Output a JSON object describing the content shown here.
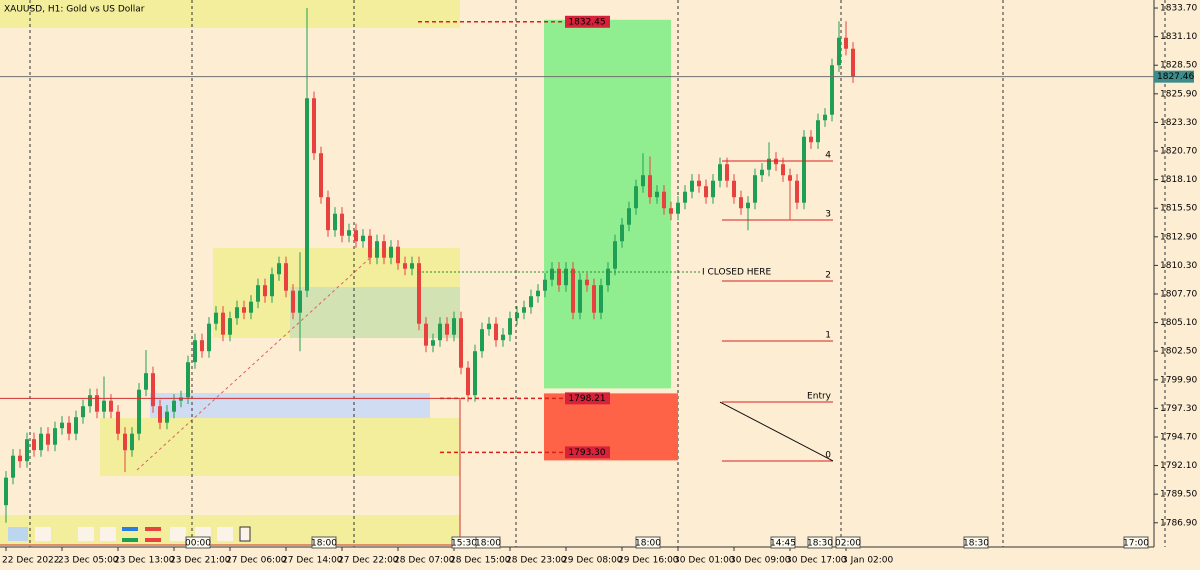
{
  "chart_data": {
    "type": "candlestick",
    "title": "XAUUSD, H1:  Gold vs US Dollar",
    "categories": [
      "22 Dec 2022",
      null,
      null,
      null,
      null,
      null,
      null,
      null,
      "23 Dec 05:00",
      null,
      null,
      null,
      null,
      null,
      null,
      null,
      "23 Dec 13:00",
      null,
      null,
      null,
      null,
      null,
      null,
      null,
      "23 Dec 21:00",
      null,
      null,
      null,
      null,
      null,
      null,
      null,
      "27 Dec 06:00",
      null,
      null,
      null,
      null,
      null,
      null,
      null,
      "27 Dec 14:00",
      null,
      null,
      null,
      null,
      null,
      null,
      null,
      "27 Dec 22:00",
      null,
      null,
      null,
      null,
      null,
      null,
      null,
      "28 Dec 07:00",
      null,
      null,
      null,
      null,
      null,
      null,
      null,
      "28 Dec 15:00",
      null,
      null,
      null,
      null,
      null,
      null,
      null,
      "28 Dec 23:00",
      null,
      null,
      null,
      null,
      null,
      null,
      null,
      "29 Dec 08:00",
      null,
      null,
      null,
      null,
      null,
      null,
      null,
      "29 Dec 16:00",
      null,
      null,
      null,
      null,
      null,
      null,
      null,
      "30 Dec 01:00",
      null,
      null,
      null,
      null,
      null,
      null,
      null,
      "30 Dec 09:00",
      null,
      null,
      null,
      null,
      null,
      null,
      null,
      "30 Dec 17:00",
      null,
      null,
      null,
      null,
      null,
      null,
      null,
      "3 Jan 02:00",
      null
    ],
    "open": [
      1788.5,
      1791.0,
      1793.0,
      1792.5,
      1794.5,
      1793.5,
      1795.0,
      1794.0,
      1795.5,
      1796.0,
      1795.0,
      1796.5,
      1797.5,
      1798.5,
      1797.0,
      1798.0,
      1797.0,
      1795.0,
      1793.5,
      1795.0,
      1799.0,
      1800.5,
      1797.5,
      1796.0,
      1797.0,
      1798.0,
      1798.3,
      1801.5,
      1803.5,
      1802.5,
      1805.0,
      1806.0,
      1804.0,
      1805.5,
      1806.5,
      1806.0,
      1807.0,
      1808.5,
      1807.5,
      1809.5,
      1810.5,
      1808.0,
      1806.0,
      1808.0,
      1825.5,
      1820.5,
      1816.5,
      1813.5,
      1815.0,
      1813.0,
      1813.5,
      1812.5,
      1813.0,
      1811.0,
      1812.5,
      1811.0,
      1812.0,
      1810.5,
      1810.0,
      1810.5,
      1805.0,
      1803.0,
      1803.5,
      1805.0,
      1804.0,
      1805.5,
      1801.0,
      1798.5,
      1802.5,
      1804.5,
      1805.0,
      1803.5,
      1804.0,
      1805.5,
      1806.0,
      1806.5,
      1807.5,
      1808.0,
      1809.0,
      1810.0,
      1808.5,
      1810.0,
      1806.0,
      1809.0,
      1808.5,
      1806.0,
      1808.5,
      1810.0,
      1812.5,
      1814.0,
      1815.5,
      1817.5,
      1818.5,
      1816.5,
      1817.0,
      1815.5,
      1815.0,
      1816.0,
      1817.0,
      1818.0,
      1817.5,
      1816.5,
      1818.0,
      1819.5,
      1818.0,
      1816.5,
      1815.5,
      1816.0,
      1818.5,
      1819.0,
      1820.0,
      1819.5,
      1818.5,
      1818.0,
      1816.0,
      1822.0,
      1821.5,
      1823.5,
      1824.0,
      1828.5,
      1831.0,
      1830.0
    ],
    "high": [
      1791.6,
      1793.6,
      1793.6,
      1795.1,
      1795.1,
      1795.6,
      1795.6,
      1796.1,
      1796.6,
      1796.6,
      1797.1,
      1798.1,
      1799.1,
      1799.1,
      1800.2,
      1798.6,
      1797.6,
      1795.6,
      1795.6,
      1799.6,
      1802.6,
      1801.1,
      1798.1,
      1797.6,
      1798.6,
      1798.9,
      1802.1,
      1804.1,
      1804.1,
      1805.6,
      1806.6,
      1806.6,
      1806.1,
      1807.1,
      1807.1,
      1807.6,
      1809.1,
      1809.1,
      1810.1,
      1811.1,
      1811.1,
      1808.6,
      1811.5,
      1833.7,
      1826.1,
      1821.1,
      1817.1,
      1815.6,
      1815.6,
      1814.1,
      1814.1,
      1813.6,
      1813.6,
      1813.1,
      1813.1,
      1812.6,
      1812.6,
      1811.1,
      1811.1,
      1811.1,
      1805.6,
      1804.1,
      1805.6,
      1805.6,
      1806.1,
      1806.1,
      1801.6,
      1803.1,
      1805.1,
      1805.6,
      1805.6,
      1804.6,
      1806.1,
      1806.6,
      1807.1,
      1808.1,
      1808.6,
      1809.6,
      1810.6,
      1810.6,
      1810.6,
      1810.6,
      1809.6,
      1809.6,
      1809.1,
      1809.1,
      1810.6,
      1813.1,
      1814.6,
      1816.1,
      1818.1,
      1820.5,
      1820.2,
      1817.6,
      1817.6,
      1816.1,
      1816.6,
      1817.6,
      1818.6,
      1818.6,
      1818.1,
      1818.6,
      1820.1,
      1820.1,
      1818.6,
      1817.1,
      1816.6,
      1819.1,
      1819.6,
      1821.5,
      1820.6,
      1820.1,
      1819.1,
      1818.6,
      1822.6,
      1822.6,
      1824.1,
      1824.6,
      1829.1,
      1832.5,
      1832.5,
      1830.6
    ],
    "low": [
      1786.9,
      1790.4,
      1791.9,
      1791.9,
      1792.9,
      1792.9,
      1793.4,
      1793.4,
      1794.9,
      1794.4,
      1794.4,
      1795.9,
      1796.9,
      1796.4,
      1796.4,
      1796.4,
      1794.4,
      1791.5,
      1792.9,
      1794.4,
      1798.4,
      1796.9,
      1795.4,
      1795.4,
      1796.4,
      1797.4,
      1797.7,
      1800.9,
      1801.9,
      1801.9,
      1804.4,
      1803.4,
      1803.4,
      1804.9,
      1805.4,
      1805.4,
      1806.4,
      1806.9,
      1806.9,
      1808.9,
      1807.4,
      1805.4,
      1802.5,
      1807.4,
      1819.9,
      1815.9,
      1812.9,
      1812.9,
      1812.4,
      1812.4,
      1811.9,
      1811.9,
      1810.4,
      1810.4,
      1810.4,
      1810.4,
      1809.9,
      1809.4,
      1809.4,
      1804.4,
      1802.4,
      1802.4,
      1802.9,
      1803.4,
      1803.4,
      1800.4,
      1797.9,
      1797.9,
      1801.9,
      1803.9,
      1802.9,
      1802.9,
      1803.4,
      1804.9,
      1805.4,
      1805.9,
      1806.9,
      1807.4,
      1808.4,
      1807.9,
      1807.9,
      1805.4,
      1805.4,
      1807.9,
      1805.4,
      1805.4,
      1807.9,
      1809.4,
      1811.9,
      1813.4,
      1814.9,
      1816.9,
      1815.9,
      1815.9,
      1814.9,
      1814.4,
      1814.4,
      1815.4,
      1816.4,
      1816.9,
      1815.9,
      1815.9,
      1817.4,
      1817.4,
      1815.9,
      1814.9,
      1813.5,
      1815.4,
      1817.9,
      1818.4,
      1818.9,
      1817.9,
      1814.5,
      1815.4,
      1815.4,
      1820.9,
      1820.9,
      1822.9,
      1823.4,
      1827.9,
      1829.4,
      1826.9
    ],
    "close": [
      1791.0,
      1793.0,
      1792.5,
      1794.5,
      1793.5,
      1795.0,
      1794.0,
      1795.5,
      1796.0,
      1795.0,
      1796.5,
      1797.5,
      1798.5,
      1797.0,
      1798.0,
      1797.0,
      1795.0,
      1793.5,
      1795.0,
      1799.0,
      1800.5,
      1797.5,
      1796.0,
      1797.0,
      1798.0,
      1798.3,
      1801.5,
      1803.5,
      1802.5,
      1805.0,
      1806.0,
      1804.0,
      1805.5,
      1806.5,
      1806.0,
      1807.0,
      1808.5,
      1807.5,
      1809.5,
      1810.5,
      1808.0,
      1806.0,
      1808.0,
      1825.5,
      1820.5,
      1816.5,
      1813.5,
      1815.0,
      1813.0,
      1813.5,
      1812.5,
      1813.0,
      1811.0,
      1812.5,
      1811.0,
      1812.0,
      1810.5,
      1810.0,
      1810.5,
      1805.0,
      1803.0,
      1803.5,
      1805.0,
      1804.0,
      1805.5,
      1801.0,
      1798.5,
      1802.5,
      1804.5,
      1805.0,
      1803.5,
      1804.0,
      1805.5,
      1806.0,
      1806.5,
      1807.5,
      1808.0,
      1809.0,
      1810.0,
      1808.5,
      1810.0,
      1806.0,
      1809.0,
      1808.5,
      1806.0,
      1808.5,
      1810.0,
      1812.5,
      1814.0,
      1815.5,
      1817.5,
      1818.5,
      1816.5,
      1817.0,
      1815.5,
      1815.0,
      1816.0,
      1817.0,
      1818.0,
      1817.5,
      1816.5,
      1818.0,
      1819.5,
      1818.0,
      1816.5,
      1815.5,
      1816.0,
      1818.5,
      1819.0,
      1820.0,
      1819.5,
      1818.5,
      1818.0,
      1816.0,
      1822.0,
      1821.5,
      1823.5,
      1824.0,
      1828.5,
      1831.0,
      1830.0,
      1827.46
    ],
    "up_color": "#1f9f55",
    "down_color": "#e8423f",
    "ylim": [
      1784.88,
      1834.43
    ],
    "yticks": [
      {
        "value": 1833.7,
        "label": "1833.70"
      },
      {
        "value": 1831.1,
        "label": "1831.10"
      },
      {
        "value": 1828.5,
        "label": "1828.50"
      },
      {
        "value": 1825.9,
        "label": "1825.90"
      },
      {
        "value": 1823.3,
        "label": "1823.30"
      },
      {
        "value": 1820.7,
        "label": "1820.70"
      },
      {
        "value": 1818.1,
        "label": "1818.10"
      },
      {
        "value": 1815.5,
        "label": "1815.50"
      },
      {
        "value": 1812.9,
        "label": "1812.90"
      },
      {
        "value": 1810.3,
        "label": "1810.30"
      },
      {
        "value": 1807.7,
        "label": "1807.70"
      },
      {
        "value": 1805.1,
        "label": "1805.10"
      },
      {
        "value": 1802.5,
        "label": "1802.50"
      },
      {
        "value": 1799.9,
        "label": "1799.90"
      },
      {
        "value": 1797.3,
        "label": "1797.30"
      },
      {
        "value": 1794.7,
        "label": "1794.70"
      },
      {
        "value": 1792.1,
        "label": "1792.10"
      },
      {
        "value": 1789.5,
        "label": "1789.50"
      },
      {
        "value": 1786.9,
        "label": "1786.90"
      }
    ],
    "last_price": 1827.46,
    "take_profit": 1832.45,
    "entry": 1798.21,
    "stop_loss": {
      "value": 1793.3,
      "label": "1793.30"
    },
    "fib_levels": [
      {
        "label": "4",
        "price": 1819.79
      },
      {
        "label": "3",
        "price": 1814.43
      },
      {
        "label": "2",
        "price": 1808.88
      },
      {
        "label": "1",
        "price": 1803.43
      },
      {
        "label": "Entry",
        "price": 1797.88
      },
      {
        "label": "0",
        "price": 1792.52
      }
    ],
    "note": {
      "text": "I CLOSED HERE",
      "price": 1809.7
    },
    "time_markers": [
      "00:00",
      "18:00",
      "15:30",
      "18:00",
      "18:00",
      "14:45",
      "18:30",
      "02:00",
      "18:30",
      "17:00"
    ]
  }
}
